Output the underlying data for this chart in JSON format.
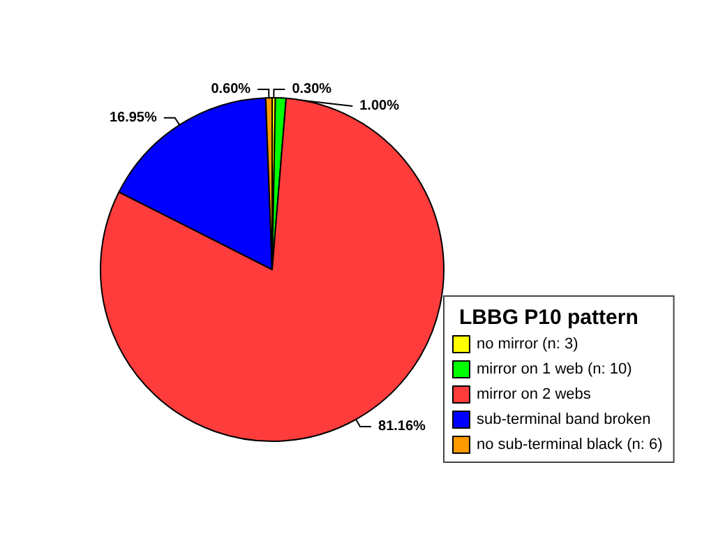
{
  "chart_data": {
    "type": "pie",
    "legend_title": "LBBG P10 pattern",
    "categories": [
      "no mirror (n: 3)",
      "mirror on 1 web (n: 10)",
      "mirror on 2 webs",
      "sub-terminal band broken",
      "no sub-terminal black (n: 6)"
    ],
    "values": [
      0.3,
      1.0,
      81.16,
      16.95,
      0.6
    ],
    "value_labels": [
      "0.30%",
      "1.00%",
      "81.16%",
      "16.95%",
      "0.60%"
    ],
    "colors": [
      "#ffff00",
      "#00ff00",
      "#ff3c3c",
      "#0000ff",
      "#ff9900"
    ],
    "legend": "bottom right"
  }
}
